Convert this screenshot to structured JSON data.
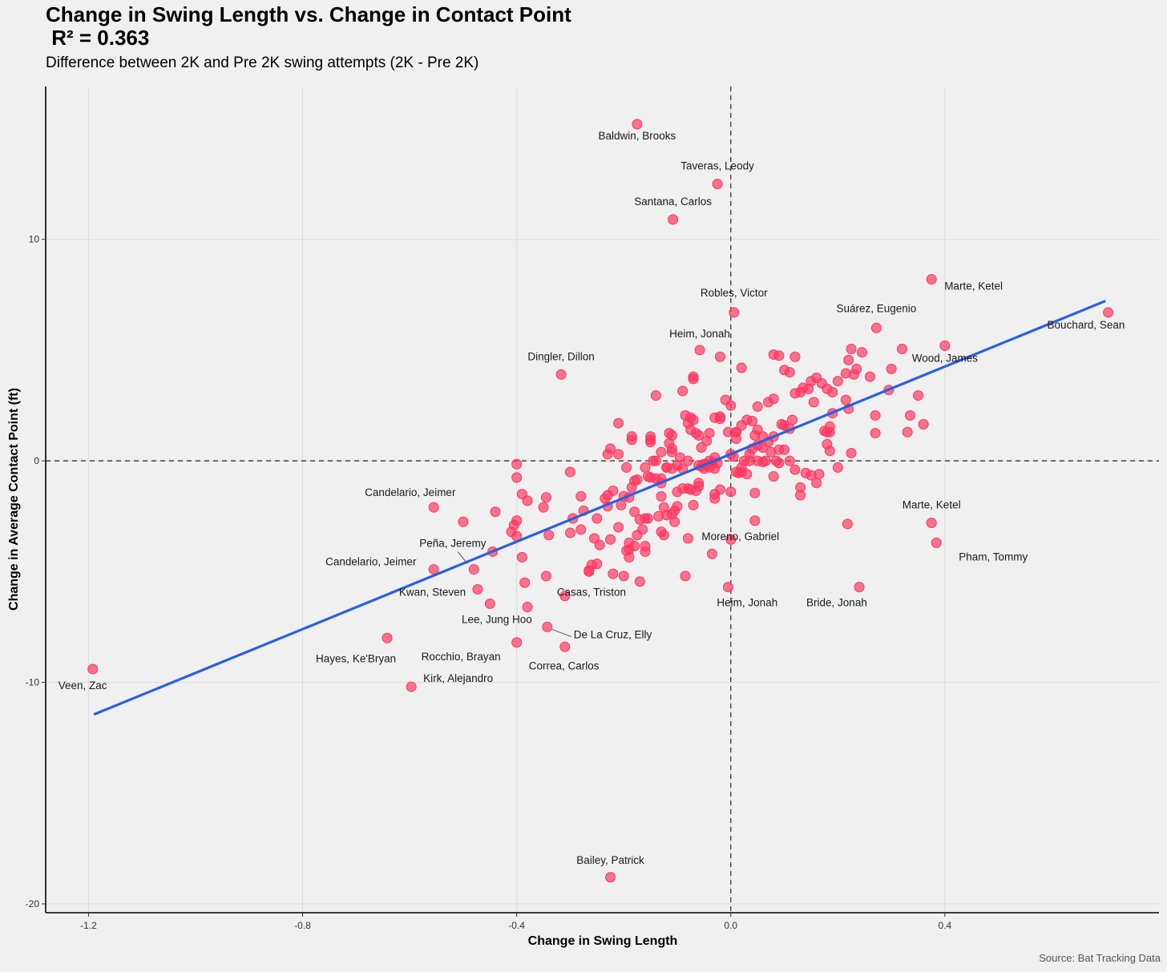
{
  "header": {
    "title": "Change in Swing Length vs. Change in Contact Point\n R² = 0.363",
    "subtitle": "Difference between 2K and Pre 2K swing attempts (2K - Pre 2K)",
    "caption": "Source: Bat Tracking Data"
  },
  "colors": {
    "point": "#ff355e",
    "fit": "#2b5fe0",
    "axis": "#000000",
    "grid": "#dcdcdc",
    "reference": "#444444"
  },
  "chart_data": {
    "type": "scatter",
    "title": "Change in Swing Length vs. Change in Contact Point",
    "subtitle": "Difference between 2K and Pre 2K swing attempts (2K - Pre 2K)",
    "annotation": "R² = 0.363",
    "xlabel": "Change in Swing Length",
    "ylabel": "Change in Average Contact Point (ft)",
    "xlim": [
      -1.28,
      0.8
    ],
    "ylim": [
      -20.4,
      16.9
    ],
    "xticks": [
      -1.2,
      -0.8,
      -0.4,
      0.0,
      0.4
    ],
    "xtick_labels": [
      "-1.2",
      "-0.8",
      "-0.4",
      "0.0",
      "0.4"
    ],
    "yticks": [
      -20,
      -10,
      0,
      10
    ],
    "ytick_labels": [
      "-20",
      "-10",
      "0",
      "10"
    ],
    "reference_lines": {
      "x": 0,
      "y": 0,
      "style": "dashed"
    },
    "fit": {
      "x": [
        -1.19,
        0.7
      ],
      "y": [
        -11.45,
        7.22
      ]
    },
    "source": "Source: Bat Tracking Data",
    "labeled_points": [
      {
        "name": "Baldwin, Brooks",
        "x": -0.175,
        "y": 15.2
      },
      {
        "name": "Taveras, Leody",
        "x": -0.025,
        "y": 12.5
      },
      {
        "name": "Santana, Carlos",
        "x": -0.108,
        "y": 10.9
      },
      {
        "name": "Marte, Ketel",
        "x": 0.375,
        "y": 8.2
      },
      {
        "name": "Robles, Victor",
        "x": 0.006,
        "y": 6.7
      },
      {
        "name": "Suárez, Eugenio",
        "x": 0.272,
        "y": 6.0
      },
      {
        "name": "Bouchard, Sean",
        "x": 0.705,
        "y": 6.7
      },
      {
        "name": "Heim, Jonah",
        "x": -0.058,
        "y": 5.0
      },
      {
        "name": "Wood, James",
        "x": 0.4,
        "y": 5.2
      },
      {
        "name": "Dingler, Dillon",
        "x": -0.317,
        "y": 3.9
      },
      {
        "name": "Candelario, Jeimer",
        "x": -0.555,
        "y": -2.1
      },
      {
        "name": "Marte, Ketel",
        "x": 0.375,
        "y": -2.8
      },
      {
        "name": "Peña, Jeremy",
        "x": -0.48,
        "y": -4.9
      },
      {
        "name": "Moreno, Gabriel",
        "x": 0.218,
        "y": -2.85
      },
      {
        "name": "Pham, Tommy",
        "x": 0.384,
        "y": -3.7
      },
      {
        "name": "Candelario, Jeimer",
        "x": -0.555,
        "y": -4.9
      },
      {
        "name": "Kwan, Steven",
        "x": -0.473,
        "y": -5.8
      },
      {
        "name": "Heim, Jonah",
        "x": -0.005,
        "y": -5.7
      },
      {
        "name": "Bride, Jonah",
        "x": 0.24,
        "y": -5.7
      },
      {
        "name": "Casas, Triston",
        "x": -0.31,
        "y": -6.1
      },
      {
        "name": "Lee, Jung Hoo",
        "x": -0.38,
        "y": -6.6
      },
      {
        "name": "De La Cruz, Elly",
        "x": -0.343,
        "y": -7.5
      },
      {
        "name": "Hayes, Ke'Bryan",
        "x": -0.642,
        "y": -8.0
      },
      {
        "name": "Rocchio, Brayan",
        "x": -0.4,
        "y": -8.2
      },
      {
        "name": "Correa, Carlos",
        "x": -0.31,
        "y": -8.4
      },
      {
        "name": "Kirk, Alejandro",
        "x": -0.597,
        "y": -10.2
      },
      {
        "name": "Veen, Zac",
        "x": -1.192,
        "y": -9.4
      },
      {
        "name": "Bailey, Patrick",
        "x": -0.225,
        "y": -18.8
      }
    ],
    "points": [
      [
        0.36,
        1.65
      ],
      [
        0.335,
        2.05
      ],
      [
        0.33,
        1.3
      ],
      [
        0.35,
        2.95
      ],
      [
        0.3,
        4.15
      ],
      [
        0.295,
        3.2
      ],
      [
        0.32,
        5.05
      ],
      [
        0.245,
        4.9
      ],
      [
        0.235,
        4.15
      ],
      [
        0.23,
        3.9
      ],
      [
        0.22,
        4.55
      ],
      [
        0.225,
        5.05
      ],
      [
        0.215,
        3.95
      ],
      [
        0.26,
        3.8
      ],
      [
        0.2,
        3.6
      ],
      [
        0.19,
        3.1
      ],
      [
        0.18,
        3.25
      ],
      [
        0.16,
        3.75
      ],
      [
        0.15,
        3.6
      ],
      [
        0.17,
        3.5
      ],
      [
        0.155,
        2.65
      ],
      [
        0.145,
        3.25
      ],
      [
        0.13,
        3.1
      ],
      [
        0.135,
        3.3
      ],
      [
        0.115,
        1.85
      ],
      [
        0.11,
        1.45
      ],
      [
        0.12,
        3.05
      ],
      [
        0.1,
        1.6
      ],
      [
        0.095,
        1.65
      ],
      [
        0.215,
        2.75
      ],
      [
        0.27,
        2.05
      ],
      [
        0.27,
        1.25
      ],
      [
        0.22,
        2.35
      ],
      [
        0.19,
        2.15
      ],
      [
        0.185,
        1.55
      ],
      [
        0.185,
        1.3
      ],
      [
        0.18,
        1.3
      ],
      [
        0.175,
        1.35
      ],
      [
        0.185,
        0.45
      ],
      [
        0.18,
        0.75
      ],
      [
        0.225,
        0.35
      ],
      [
        0.2,
        -0.3
      ],
      [
        0.165,
        -0.6
      ],
      [
        0.15,
        -0.65
      ],
      [
        0.13,
        -1.2
      ],
      [
        0.13,
        -1.55
      ],
      [
        0.11,
        0.0
      ],
      [
        0.09,
        0.5
      ],
      [
        0.09,
        -0.1
      ],
      [
        0.08,
        -0.7
      ],
      [
        0.075,
        0.4
      ],
      [
        0.065,
        0.0
      ],
      [
        0.06,
        -0.05
      ],
      [
        0.05,
        0.0
      ],
      [
        0.05,
        0.7
      ],
      [
        0.045,
        1.15
      ],
      [
        0.04,
        1.8
      ],
      [
        0.03,
        1.85
      ],
      [
        0.02,
        1.6
      ],
      [
        0.01,
        1.3
      ],
      [
        0.01,
        1.0
      ],
      [
        0.005,
        0.2
      ],
      [
        0.0,
        0.3
      ],
      [
        -0.005,
        1.3
      ],
      [
        0.025,
        0.0
      ],
      [
        0.02,
        -0.3
      ],
      [
        0.02,
        -0.5
      ],
      [
        0.015,
        -0.55
      ],
      [
        0.01,
        -0.5
      ],
      [
        0.0,
        -1.4
      ],
      [
        0.045,
        -1.45
      ],
      [
        0.045,
        -2.7
      ],
      [
        0.0,
        -3.55
      ],
      [
        -0.035,
        -4.2
      ],
      [
        -0.03,
        -1.5
      ],
      [
        -0.03,
        -1.7
      ],
      [
        -0.03,
        -0.35
      ],
      [
        -0.035,
        -0.1
      ],
      [
        -0.04,
        0.0
      ],
      [
        -0.05,
        -0.15
      ],
      [
        -0.055,
        0.6
      ],
      [
        -0.045,
        0.9
      ],
      [
        -0.04,
        1.25
      ],
      [
        -0.06,
        1.15
      ],
      [
        -0.065,
        1.25
      ],
      [
        -0.075,
        1.4
      ],
      [
        -0.08,
        1.7
      ],
      [
        -0.07,
        3.8
      ],
      [
        -0.07,
        3.7
      ],
      [
        -0.05,
        -0.35
      ],
      [
        -0.06,
        -1.15
      ],
      [
        -0.06,
        -1.0
      ],
      [
        -0.065,
        -1.35
      ],
      [
        -0.07,
        -2.0
      ],
      [
        -0.075,
        -1.3
      ],
      [
        -0.08,
        -1.25
      ],
      [
        -0.09,
        -1.25
      ],
      [
        -0.08,
        -3.5
      ],
      [
        -0.085,
        -5.2
      ],
      [
        -0.09,
        -0.35
      ],
      [
        -0.08,
        0.0
      ],
      [
        -0.1,
        -0.2
      ],
      [
        -0.1,
        -2.05
      ],
      [
        -0.105,
        -2.25
      ],
      [
        -0.11,
        -2.4
      ],
      [
        -0.12,
        -2.45
      ],
      [
        -0.125,
        -3.35
      ],
      [
        -0.13,
        -3.2
      ],
      [
        -0.13,
        -1.6
      ],
      [
        -0.13,
        -1.0
      ],
      [
        -0.13,
        -0.8
      ],
      [
        -0.12,
        -0.3
      ],
      [
        -0.11,
        -0.35
      ],
      [
        -0.105,
        -2.75
      ],
      [
        -0.11,
        0.4
      ],
      [
        -0.115,
        0.8
      ],
      [
        -0.11,
        1.15
      ],
      [
        -0.115,
        1.25
      ],
      [
        -0.11,
        0.55
      ],
      [
        -0.145,
        0.0
      ],
      [
        -0.14,
        -0.8
      ],
      [
        -0.15,
        -0.75
      ],
      [
        -0.155,
        -0.7
      ],
      [
        -0.16,
        -2.6
      ],
      [
        -0.165,
        -3.1
      ],
      [
        -0.17,
        -2.65
      ],
      [
        -0.18,
        -2.3
      ],
      [
        -0.175,
        -3.35
      ],
      [
        -0.18,
        -3.85
      ],
      [
        -0.16,
        -3.85
      ],
      [
        -0.16,
        -4.1
      ],
      [
        -0.16,
        -0.3
      ],
      [
        -0.15,
        1.1
      ],
      [
        -0.15,
        0.95
      ],
      [
        -0.185,
        0.95
      ],
      [
        -0.185,
        1.1
      ],
      [
        -0.175,
        -0.85
      ],
      [
        -0.18,
        -0.9
      ],
      [
        -0.185,
        -1.2
      ],
      [
        -0.19,
        -1.65
      ],
      [
        -0.195,
        -0.3
      ],
      [
        -0.19,
        -3.7
      ],
      [
        -0.19,
        -4.0
      ],
      [
        -0.195,
        -4.05
      ],
      [
        -0.19,
        -4.35
      ],
      [
        -0.21,
        0.3
      ],
      [
        -0.21,
        1.7
      ],
      [
        -0.22,
        -1.35
      ],
      [
        -0.23,
        -1.55
      ],
      [
        -0.235,
        -1.7
      ],
      [
        -0.23,
        -2.05
      ],
      [
        -0.225,
        -3.55
      ],
      [
        -0.23,
        0.3
      ],
      [
        -0.225,
        0.55
      ],
      [
        -0.245,
        -3.8
      ],
      [
        -0.25,
        -4.65
      ],
      [
        -0.26,
        -4.7
      ],
      [
        -0.265,
        -5.0
      ],
      [
        -0.275,
        -2.25
      ],
      [
        -0.28,
        -1.6
      ],
      [
        -0.28,
        -3.1
      ],
      [
        -0.295,
        -2.6
      ],
      [
        -0.3,
        -3.25
      ],
      [
        -0.3,
        -0.5
      ],
      [
        -0.34,
        -3.35
      ],
      [
        -0.345,
        -1.65
      ],
      [
        -0.35,
        -2.1
      ],
      [
        -0.345,
        -5.2
      ],
      [
        -0.38,
        -1.8
      ],
      [
        -0.39,
        -1.5
      ],
      [
        -0.39,
        -4.35
      ],
      [
        -0.385,
        -5.5
      ],
      [
        -0.4,
        -3.4
      ],
      [
        -0.405,
        -2.9
      ],
      [
        -0.4,
        -2.7
      ],
      [
        -0.41,
        -3.2
      ],
      [
        -0.4,
        -0.75
      ],
      [
        -0.4,
        -0.15
      ],
      [
        -0.44,
        -2.3
      ],
      [
        -0.445,
        -4.1
      ],
      [
        -0.5,
        -2.75
      ],
      [
        -0.45,
        -6.45
      ],
      [
        -0.22,
        -5.1
      ],
      [
        -0.25,
        -2.6
      ],
      [
        -0.14,
        2.95
      ],
      [
        -0.09,
        3.15
      ],
      [
        -0.07,
        1.85
      ],
      [
        -0.01,
        2.75
      ],
      [
        -0.02,
        2.0
      ],
      [
        0.01,
        1.3
      ],
      [
        0.05,
        1.4
      ],
      [
        0.06,
        1.1
      ],
      [
        0.08,
        2.8
      ],
      [
        0.07,
        2.65
      ],
      [
        0.05,
        2.45
      ],
      [
        0.08,
        4.8
      ],
      [
        0.09,
        4.75
      ],
      [
        0.1,
        4.1
      ],
      [
        0.11,
        4.0
      ],
      [
        0.12,
        4.7
      ],
      [
        0.0,
        2.5
      ],
      [
        0.02,
        4.2
      ],
      [
        -0.02,
        4.7
      ],
      [
        -0.02,
        1.9
      ],
      [
        -0.03,
        1.95
      ],
      [
        0.035,
        0.3
      ],
      [
        0.04,
        0.55
      ],
      [
        0.06,
        0.6
      ],
      [
        0.08,
        1.1
      ],
      [
        0.1,
        0.5
      ],
      [
        0.07,
        0.85
      ],
      [
        0.03,
        -0.6
      ],
      [
        0.035,
        0.0
      ],
      [
        -0.02,
        -1.3
      ],
      [
        0.14,
        -0.55
      ],
      [
        0.16,
        -1.0
      ],
      [
        0.12,
        -0.4
      ],
      [
        0.085,
        0.0
      ],
      [
        -0.075,
        1.95
      ],
      [
        -0.085,
        2.05
      ],
      [
        -0.095,
        0.15
      ],
      [
        -0.1,
        -1.4
      ],
      [
        -0.125,
        -2.1
      ],
      [
        -0.135,
        -2.5
      ],
      [
        -0.155,
        -2.6
      ],
      [
        -0.2,
        -1.6
      ],
      [
        -0.205,
        -2.0
      ],
      [
        -0.21,
        -3.0
      ],
      [
        -0.255,
        -3.5
      ],
      [
        -0.265,
        -4.95
      ],
      [
        -0.2,
        -5.2
      ],
      [
        -0.17,
        -5.45
      ],
      [
        -0.12,
        -0.3
      ],
      [
        -0.13,
        0.4
      ],
      [
        -0.14,
        0.0
      ],
      [
        -0.15,
        0.85
      ],
      [
        -0.055,
        -0.25
      ],
      [
        -0.06,
        -0.2
      ],
      [
        -0.045,
        -0.15
      ],
      [
        -0.04,
        -0.3
      ],
      [
        -0.03,
        0.15
      ],
      [
        -0.025,
        -0.1
      ]
    ]
  }
}
